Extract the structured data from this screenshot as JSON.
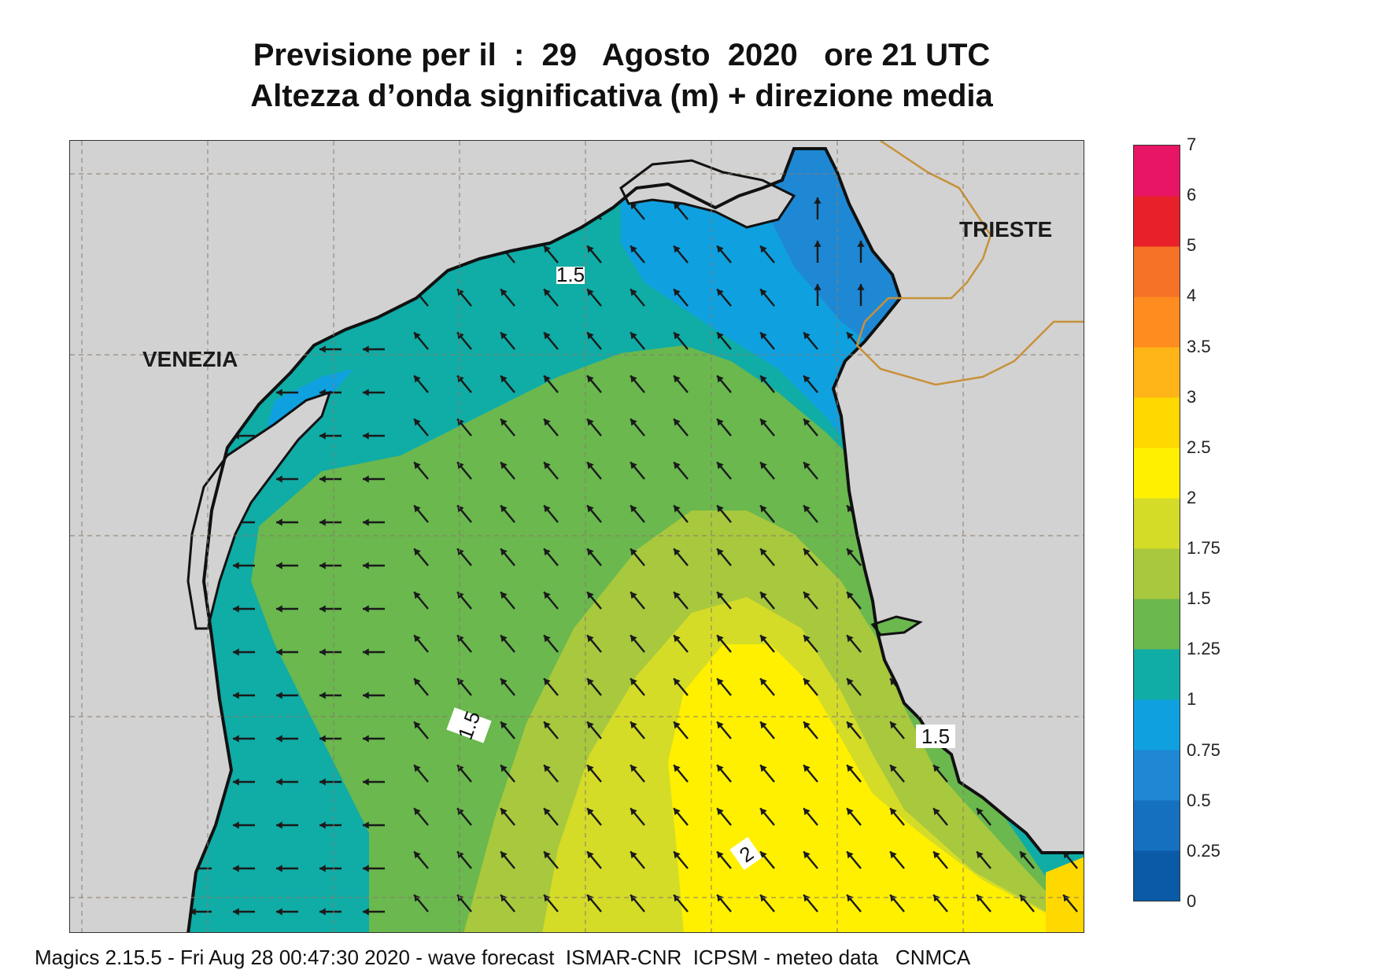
{
  "title": {
    "line1": "Previsione per il  :  29   Agosto  2020   ore 21 UTC",
    "line2": "Altezza d’onda significativa (m) + direzione media"
  },
  "map": {
    "places": [
      "VENEZIA",
      "TRIESTE"
    ],
    "contour_labels": [
      "1.5",
      "1.5",
      "1.5",
      "2"
    ],
    "land_color": "#d2d2d2",
    "coast_color": "#111111",
    "border_color": "#c8913a",
    "arrow_color": "#1a1a1a"
  },
  "colorbar": {
    "labels": [
      "0",
      "0.25",
      "0.5",
      "0.75",
      "1",
      "1.25",
      "1.5",
      "1.75",
      "2",
      "2.5",
      "3",
      "3.5",
      "4",
      "5",
      "6",
      "7"
    ],
    "colors": [
      "#0a5aa8",
      "#1570c0",
      "#1e88d4",
      "#0fa0e0",
      "#10aca6",
      "#6ab84e",
      "#a8c83e",
      "#d4dc28",
      "#fff000",
      "#ffd800",
      "#ffb418",
      "#ff8c1e",
      "#f57226",
      "#e8202a",
      "#e81464"
    ]
  },
  "footer": "Magics 2.15.5 - Fri Aug 28 00:47:30 2020 - wave forecast  ISMAR-CNR  ICPSM - meteo data   CNMCA"
}
